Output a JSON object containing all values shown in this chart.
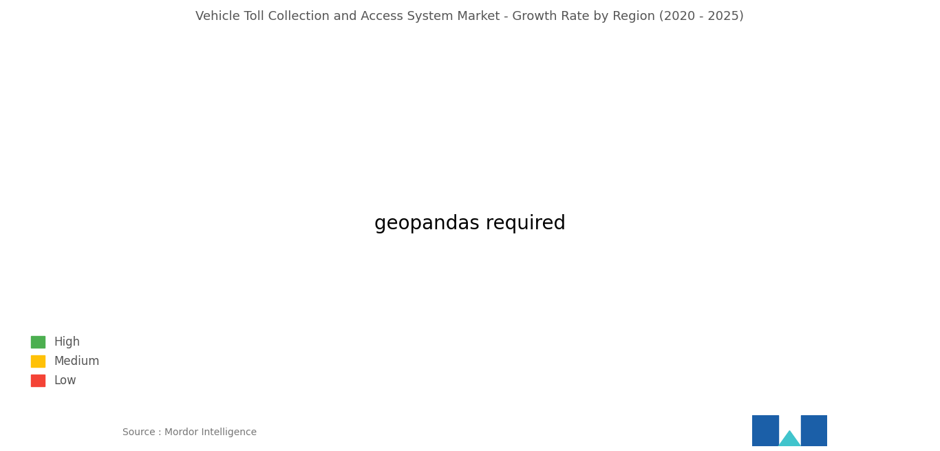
{
  "title": "Vehicle Toll Collection and Access System Market - Growth Rate by Region (2020 - 2025)",
  "title_fontsize": 13,
  "source_text": "Source : Mordor Intelligence",
  "legend_items": [
    {
      "label": "High",
      "color": "#4CAF50"
    },
    {
      "label": "Medium",
      "color": "#FFC107"
    },
    {
      "label": "Low",
      "color": "#F44336"
    }
  ],
  "region_colors": {
    "North America": "#FFC107",
    "Central America": "#FFC107",
    "South America": "#F44336",
    "Europe": "#4CAF50",
    "Russia": "#4CAF50",
    "Middle East": "#4CAF50",
    "Africa": "#F44336",
    "Asia": "#4CAF50",
    "Oceania": "#4CAF50",
    "Greenland": "#9E9E9E"
  },
  "background_color": "#FFFFFF",
  "ocean_color": "#FFFFFF",
  "border_color": "#FFFFFF",
  "country_border_color": "#FFFFFF",
  "fig_width": 13.66,
  "fig_height": 6.55
}
